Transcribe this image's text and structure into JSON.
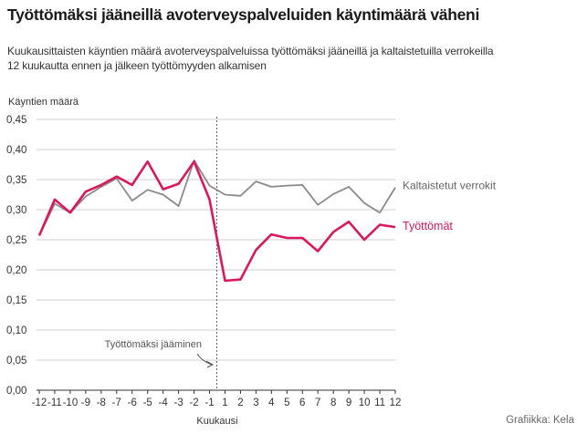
{
  "title": "Työttömäksi jääneillä avoterveyspalveluiden käyntimäärä väheni",
  "subtitle_lines": [
    "Kuukausittaisten käyntien määrä avoterveyspalveluissa työttömäksi jääneillä ja kaltaistetuilla verrokeilla",
    "12 kuukautta ennen ja jälkeen työttömyyden alkamisen"
  ],
  "source": "Grafiikka: Kela",
  "colors": {
    "unemployed": "#d9185e",
    "controls": "#8a8a8a",
    "grid": "#d0d0d0",
    "axis": "#333333"
  },
  "chart_data": {
    "type": "line",
    "ylabel": "Käyntien määrä",
    "xlabel": "Kuukausi",
    "ylim": [
      0,
      0.45
    ],
    "yticks": [
      "0,00",
      "0,05",
      "0,10",
      "0,15",
      "0,20",
      "0,25",
      "0,30",
      "0,35",
      "0,40",
      "0,45"
    ],
    "x_tick_labels": [
      "-12",
      "-11",
      "-10",
      "-9",
      "-8",
      "-7",
      "-6",
      "-5",
      "-4",
      "-3",
      "-2",
      "-1",
      "1",
      "2",
      "3",
      "4",
      "5",
      "6",
      "7",
      "8",
      "9",
      "10",
      "11",
      "12"
    ],
    "grid": true,
    "annotation": {
      "text": "Työttömäksi jääminen",
      "at": "between -1 and 1"
    },
    "series": [
      {
        "name": "Kaltaistetut verrokit",
        "color": "#8a8a8a",
        "values": [
          0.257,
          0.31,
          0.295,
          0.322,
          0.338,
          0.352,
          0.315,
          0.333,
          0.325,
          0.306,
          0.382,
          0.34,
          0.325,
          0.323,
          0.347,
          0.338,
          0.34,
          0.341,
          0.308,
          0.326,
          0.338,
          0.311,
          0.295,
          0.337
        ]
      },
      {
        "name": "Työttömät",
        "color": "#d9185e",
        "values": [
          0.257,
          0.317,
          0.295,
          0.33,
          0.341,
          0.355,
          0.341,
          0.38,
          0.334,
          0.343,
          0.38,
          0.317,
          0.182,
          0.184,
          0.233,
          0.259,
          0.253,
          0.253,
          0.231,
          0.263,
          0.28,
          0.25,
          0.275,
          0.271
        ]
      }
    ]
  }
}
